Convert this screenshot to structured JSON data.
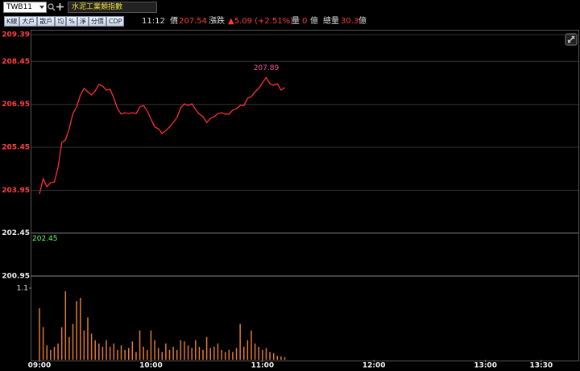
{
  "toolbar": {
    "symbol": "TWB11",
    "index_name": "水泥工業類指數",
    "buttons": [
      "K線",
      "大戶",
      "散戶",
      "均",
      "%",
      "淨",
      "分價",
      "CDP"
    ]
  },
  "quote": {
    "time": "11:12",
    "price_label": "價",
    "price": "207.54",
    "change_label": "漲跌",
    "change": "▲5.09 (+2.51%)",
    "volume_label": "量",
    "volume": "0",
    "volume_unit": "億",
    "total_label": "總量",
    "total": "30.3",
    "total_unit": "億"
  },
  "chart_data": {
    "type": "line",
    "xlim": [
      "09:00",
      "13:50"
    ],
    "xticks": [
      "09:00",
      "10:00",
      "11:00",
      "12:00",
      "13:00",
      "13:30"
    ],
    "ylim": [
      200.95,
      209.39
    ],
    "yticks": [
      209.39,
      208.45,
      206.95,
      205.45,
      203.95,
      202.45,
      200.95
    ],
    "y2lim": [
      0,
      1.1
    ],
    "y2ticks": [
      1.1
    ],
    "reference": 202.45,
    "peak": 207.89,
    "x": [
      "09:00",
      "09:02",
      "09:04",
      "09:06",
      "09:08",
      "09:10",
      "09:12",
      "09:14",
      "09:16",
      "09:18",
      "09:20",
      "09:22",
      "09:24",
      "09:26",
      "09:28",
      "09:30",
      "09:32",
      "09:34",
      "09:36",
      "09:38",
      "09:40",
      "09:42",
      "09:44",
      "09:46",
      "09:48",
      "09:50",
      "09:52",
      "09:54",
      "09:56",
      "09:58",
      "10:00",
      "10:02",
      "10:04",
      "10:06",
      "10:08",
      "10:10",
      "10:12",
      "10:14",
      "10:16",
      "10:18",
      "10:20",
      "10:22",
      "10:24",
      "10:26",
      "10:28",
      "10:30",
      "10:32",
      "10:34",
      "10:36",
      "10:38",
      "10:40",
      "10:42",
      "10:44",
      "10:46",
      "10:48",
      "10:50",
      "10:52",
      "10:54",
      "10:56",
      "10:58",
      "11:00",
      "11:02",
      "11:04",
      "11:06",
      "11:08",
      "11:10",
      "11:12"
    ],
    "series": [
      {
        "color": "#ff3030",
        "values": [
          203.82,
          204.35,
          204.07,
          204.21,
          204.24,
          204.75,
          205.62,
          205.71,
          206.1,
          206.63,
          206.86,
          207.28,
          207.51,
          207.39,
          207.28,
          207.42,
          207.65,
          207.59,
          207.45,
          207.48,
          207.17,
          206.8,
          206.61,
          206.66,
          206.63,
          206.66,
          206.63,
          206.86,
          206.91,
          206.72,
          206.44,
          206.16,
          206.1,
          205.93,
          206.04,
          206.16,
          206.32,
          206.49,
          206.83,
          206.97,
          206.91,
          206.97,
          206.77,
          206.61,
          206.52,
          206.32,
          206.46,
          206.52,
          206.63,
          206.66,
          206.61,
          206.61,
          206.75,
          206.8,
          206.91,
          206.91,
          207.17,
          207.22,
          207.39,
          207.51,
          207.7,
          207.89,
          207.67,
          207.62,
          207.67,
          207.45,
          207.54
        ]
      },
      {
        "type": "bar",
        "axis": "y2",
        "color": "#e07a30",
        "values": [
          0.79,
          0.5,
          0.22,
          0.15,
          0.2,
          0.25,
          0.5,
          1.05,
          0.35,
          0.55,
          0.9,
          0.95,
          0.45,
          0.65,
          0.4,
          0.3,
          0.25,
          0.2,
          0.3,
          0.2,
          0.25,
          0.15,
          0.22,
          0.15,
          0.18,
          0.28,
          0.12,
          0.45,
          0.2,
          0.15,
          0.45,
          0.3,
          0.18,
          0.12,
          0.25,
          0.15,
          0.2,
          0.15,
          0.3,
          0.28,
          0.22,
          0.18,
          0.3,
          0.2,
          0.15,
          0.35,
          0.18,
          0.2,
          0.25,
          0.15,
          0.12,
          0.15,
          0.12,
          0.18,
          0.55,
          0.2,
          0.3,
          0.45,
          0.25,
          0.2,
          0.15,
          0.18,
          0.12,
          0.1,
          0.06,
          0.05,
          0.04
        ]
      }
    ]
  }
}
